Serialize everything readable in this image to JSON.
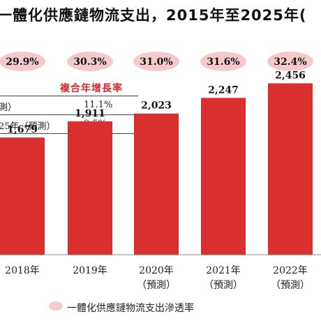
{
  "chart_data": {
    "type": "bar",
    "title": "一體化供應鏈物流支出，2015年至2025年(",
    "categories": [
      {
        "line1": "2018年",
        "line2": ""
      },
      {
        "line1": "2019年",
        "line2": ""
      },
      {
        "line1": "2020年",
        "line2": "（預測）"
      },
      {
        "line1": "2021年",
        "line2": "（預測）"
      },
      {
        "line1": "2022年",
        "line2": "（預測）"
      }
    ],
    "values": [
      1679,
      1911,
      2023,
      2247,
      2456
    ],
    "value_labels": [
      "1,679",
      "1,911",
      "2,023",
      "2,247",
      "2,456"
    ],
    "ylim": [
      0,
      2700
    ],
    "bar_color": "#d9302f",
    "penetration_series": {
      "name": "一體化供應鏈物流支出滲透率",
      "labels": [
        "29.9%",
        "30.3%",
        "31.0%",
        "31.6%",
        "32.4%"
      ],
      "bubble_color": "#f6c9cc"
    },
    "cagr_table": {
      "header": "複合年增長率",
      "rows": [
        {
          "label": "測）",
          "value": "11.1%"
        },
        {
          "label": "25年（預測）",
          "value": "9.5%"
        }
      ]
    }
  }
}
